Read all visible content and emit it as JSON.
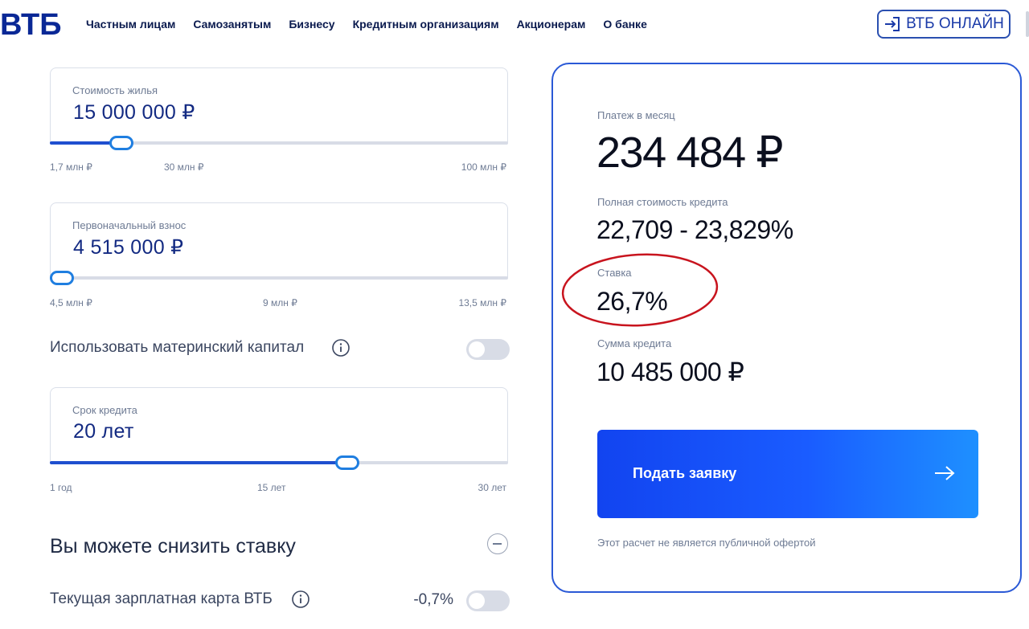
{
  "header": {
    "logo": "ВТБ",
    "nav": [
      "Частным лицам",
      "Самозанятым",
      "Бизнесу",
      "Кредитным организациям",
      "Акционерам",
      "О банке"
    ],
    "online_button": "ВТБ ОНЛАЙН"
  },
  "calculator": {
    "property_cost": {
      "label": "Стоимость жилья",
      "value": "15 000 000 ₽",
      "ticks": [
        "1,7 млн ₽",
        "30 млн ₽",
        "100 млн ₽"
      ],
      "slider_position": 0.135
    },
    "down_payment": {
      "label": "Первоначальный взнос",
      "value": "4 515 000 ₽",
      "ticks": [
        "4,5 млн ₽",
        "9 млн ₽",
        "13,5 млн ₽"
      ],
      "slider_position": 0.0
    },
    "maternity_capital": {
      "label": "Использовать материнский капитал",
      "enabled": false
    },
    "loan_term": {
      "label": "Срок кредита",
      "value": "20 лет",
      "ticks": [
        "1 год",
        "15 лет",
        "30 лет"
      ],
      "slider_position": 0.655
    },
    "reduce_rate": {
      "title": "Вы можете снизить ставку"
    },
    "salary_card": {
      "label": "Текущая зарплатная карта ВТБ",
      "discount": "-0,7%",
      "enabled": false
    }
  },
  "result": {
    "monthly_payment_label": "Платеж в месяц",
    "monthly_payment": "234 484 ₽",
    "full_cost_label": "Полная стоимость кредита",
    "full_cost": "22,709 - 23,829%",
    "rate_label": "Ставка",
    "rate": "26,7%",
    "loan_amount_label": "Сумма кредита",
    "loan_amount": "10 485 000 ₽",
    "submit_label": "Подать заявку",
    "disclaimer": "Этот расчет не является публичной офертой"
  },
  "colors": {
    "brand": "#0a2896",
    "accent": "#1f4fcf",
    "panel_border": "#2a59d6",
    "highlight": "#c8141e"
  }
}
